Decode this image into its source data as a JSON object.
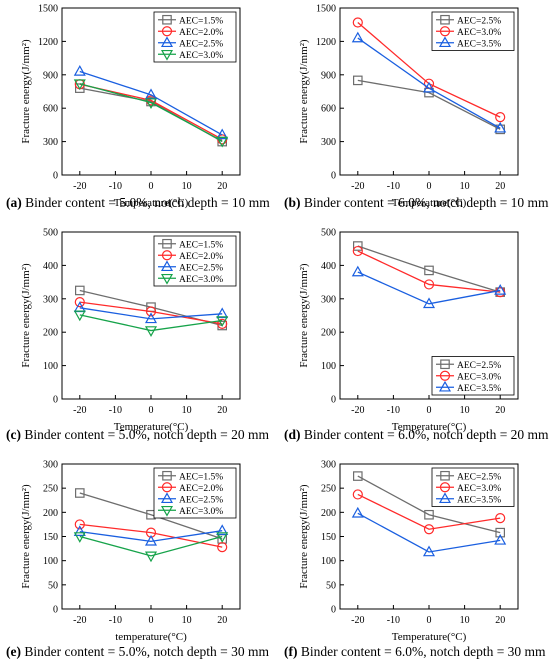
{
  "chart_data": [
    {
      "type": "line",
      "caption_tag": "(a)",
      "caption_text": " Binder content = 5.0%, notch depth = 10 mm",
      "xlabel": "Temperature(°C)",
      "ylabel": "Fracture energy(J/mm²)",
      "xlim": [
        -25,
        25
      ],
      "ylim": [
        0,
        1500
      ],
      "xticks": [
        -20,
        -10,
        0,
        10,
        20
      ],
      "yticks": [
        0,
        300,
        600,
        900,
        1200,
        1500
      ],
      "x": [
        -20,
        0,
        20
      ],
      "legend_position": "top-right",
      "series": [
        {
          "name": "AEC=1.5%",
          "values": [
            780,
            660,
            300
          ]
        },
        {
          "name": "AEC=2.0%",
          "values": [
            815,
            670,
            320
          ]
        },
        {
          "name": "AEC=2.5%",
          "values": [
            930,
            720,
            360
          ]
        },
        {
          "name": "AEC=3.0%",
          "values": [
            820,
            650,
            305
          ]
        }
      ]
    },
    {
      "type": "line",
      "caption_tag": "(b)",
      "caption_text": " Binder content = 6.0%, notch depth = 10 mm",
      "xlabel": "Temperature(°C)",
      "ylabel": "Fracture energy(J/mm²)",
      "xlim": [
        -25,
        25
      ],
      "ylim": [
        0,
        1500
      ],
      "xticks": [
        -20,
        -10,
        0,
        10,
        20
      ],
      "yticks": [
        0,
        300,
        600,
        900,
        1200,
        1500
      ],
      "x": [
        -20,
        0,
        20
      ],
      "legend_position": "top-right",
      "series": [
        {
          "name": "AEC=2.5%",
          "values": [
            850,
            740,
            410
          ]
        },
        {
          "name": "AEC=3.0%",
          "values": [
            1370,
            820,
            520
          ]
        },
        {
          "name": "AEC=3.5%",
          "values": [
            1230,
            780,
            420
          ]
        }
      ]
    },
    {
      "type": "line",
      "caption_tag": "(c)",
      "caption_text": " Binder content = 5.0%, notch depth = 20 mm",
      "xlabel": "Temperature(°C)",
      "ylabel": "Fracture energy(J/mm²)",
      "xlim": [
        -25,
        25
      ],
      "ylim": [
        0,
        500
      ],
      "xticks": [
        -20,
        -10,
        0,
        10,
        20
      ],
      "yticks": [
        0,
        100,
        200,
        300,
        400,
        500
      ],
      "x": [
        -20,
        0,
        20
      ],
      "legend_position": "top-right",
      "series": [
        {
          "name": "AEC=1.5%",
          "values": [
            325,
            275,
            220
          ]
        },
        {
          "name": "AEC=2.0%",
          "values": [
            290,
            262,
            225
          ]
        },
        {
          "name": "AEC=2.5%",
          "values": [
            273,
            240,
            255
          ]
        },
        {
          "name": "AEC=3.0%",
          "values": [
            252,
            205,
            235
          ]
        }
      ]
    },
    {
      "type": "line",
      "caption_tag": "(d)",
      "caption_text": " Binder content = 6.0%, notch depth = 20 mm",
      "xlabel": "Temperature(°C)",
      "ylabel": "Fracture energy(J/mm²)",
      "xlim": [
        -25,
        25
      ],
      "ylim": [
        0,
        500
      ],
      "xticks": [
        -20,
        -10,
        0,
        10,
        20
      ],
      "yticks": [
        0,
        100,
        200,
        300,
        400,
        500
      ],
      "x": [
        -20,
        0,
        20
      ],
      "legend_position": "bottom-right",
      "series": [
        {
          "name": "AEC=2.5%",
          "values": [
            458,
            385,
            320
          ]
        },
        {
          "name": "AEC=3.0%",
          "values": [
            443,
            343,
            320
          ]
        },
        {
          "name": "AEC=3.5%",
          "values": [
            380,
            285,
            325
          ]
        }
      ]
    },
    {
      "type": "line",
      "caption_tag": "(e)",
      "caption_text": " Binder content = 5.0%, notch depth = 30 mm",
      "xlabel": "temperature(°C)",
      "ylabel": "Fracture energy(J/mm²)",
      "xlim": [
        -25,
        25
      ],
      "ylim": [
        0,
        300
      ],
      "xticks": [
        -20,
        -10,
        0,
        10,
        20
      ],
      "yticks": [
        0,
        50,
        100,
        150,
        200,
        250,
        300
      ],
      "x": [
        -20,
        0,
        20
      ],
      "legend_position": "top-right",
      "series": [
        {
          "name": "AEC=1.5%",
          "values": [
            240,
            195,
            145
          ]
        },
        {
          "name": "AEC=2.0%",
          "values": [
            175,
            158,
            128
          ]
        },
        {
          "name": "AEC=2.5%",
          "values": [
            160,
            140,
            162
          ]
        },
        {
          "name": "AEC=3.0%",
          "values": [
            150,
            110,
            150
          ]
        }
      ]
    },
    {
      "type": "line",
      "caption_tag": "(f)",
      "caption_text": " Binder content = 6.0%, notch depth = 30 mm",
      "xlabel": "Temperature(°C)",
      "ylabel": "Fracture energy(J/mm²)",
      "xlim": [
        -25,
        25
      ],
      "ylim": [
        0,
        300
      ],
      "xticks": [
        -20,
        -10,
        0,
        10,
        20
      ],
      "yticks": [
        0,
        50,
        100,
        150,
        200,
        250,
        300
      ],
      "x": [
        -20,
        0,
        20
      ],
      "legend_position": "top-right",
      "series": [
        {
          "name": "AEC=2.5%",
          "values": [
            275,
            195,
            158
          ]
        },
        {
          "name": "AEC=3.0%",
          "values": [
            237,
            165,
            188
          ]
        },
        {
          "name": "AEC=3.5%",
          "values": [
            198,
            118,
            142
          ]
        }
      ]
    }
  ],
  "styles": {
    "markers": [
      "square",
      "circle",
      "triangle-up",
      "triangle-down"
    ],
    "four_series_colors": [
      "#6d6d6d",
      "#ff2a2a",
      "#1a5fe0",
      "#16a34a"
    ],
    "three_series_colors": [
      "#6d6d6d",
      "#ff2a2a",
      "#1a5fe0"
    ]
  }
}
